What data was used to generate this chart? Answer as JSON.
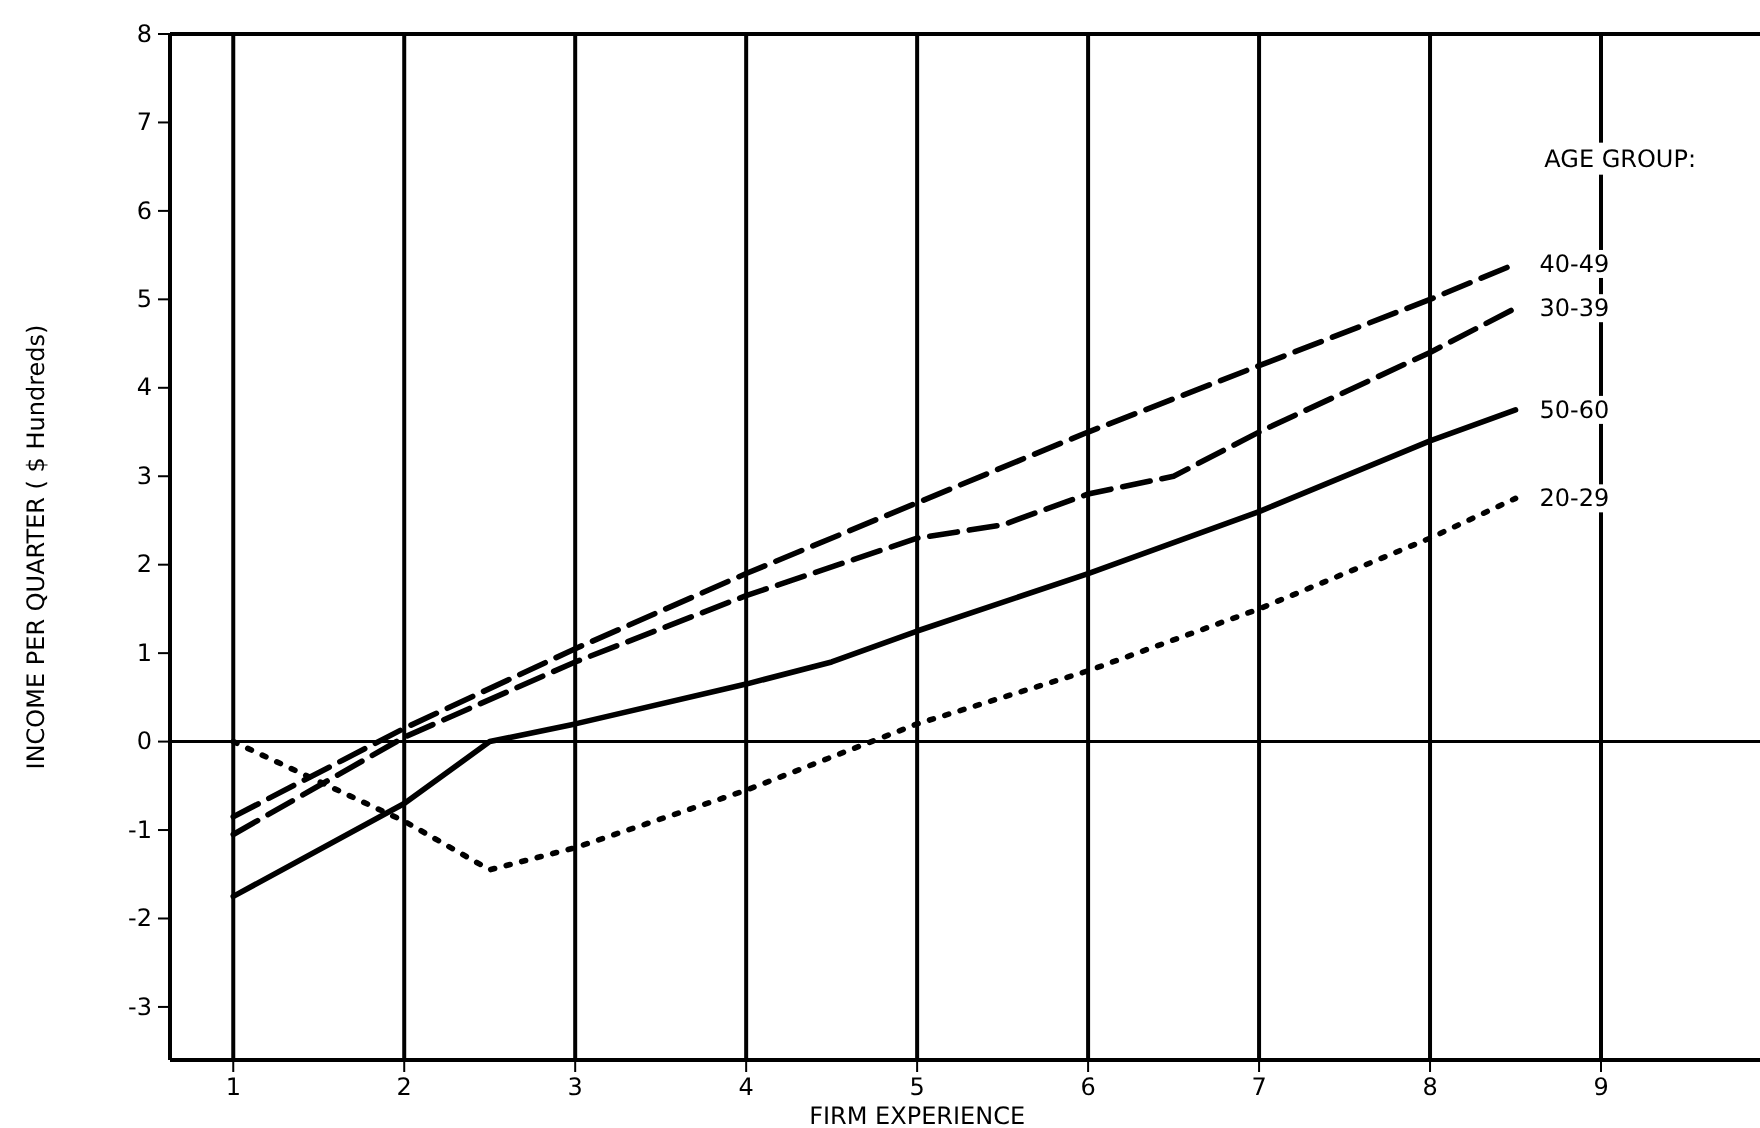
{
  "chart_data": {
    "type": "line",
    "xlabel": "FIRM EXPERIENCE",
    "ylabel": "INCOME PER QUARTER ( $ Hundreds)",
    "legend_title": "AGE GROUP:",
    "legend": "right",
    "grid": "x",
    "xlim": [
      0.63,
      9.93
    ],
    "ylim": [
      -3.6,
      8
    ],
    "xticks": [
      1,
      2,
      3,
      4,
      5,
      6,
      7,
      8,
      9
    ],
    "yticks": [
      -3,
      -2,
      -1,
      0,
      1,
      2,
      3,
      4,
      5,
      6,
      7,
      8
    ],
    "ref_lines": [
      {
        "axis": "y",
        "value": 0,
        "color": "#000000"
      }
    ],
    "series": [
      {
        "name": "40-49",
        "color": "#000000",
        "line_style": "dashed",
        "x": [
          1,
          2,
          3,
          4,
          5,
          6,
          7,
          8,
          8.5
        ],
        "values": [
          -0.85,
          0.15,
          1.05,
          1.9,
          2.7,
          3.5,
          4.25,
          5.0,
          5.4
        ]
      },
      {
        "name": "30-39",
        "color": "#000000",
        "line_style": "dashed",
        "x": [
          1,
          2,
          3,
          4,
          5,
          5.5,
          6,
          6.5,
          7,
          8,
          8.5
        ],
        "values": [
          -1.05,
          0.05,
          0.9,
          1.65,
          2.3,
          2.45,
          2.8,
          3.0,
          3.5,
          4.4,
          4.9
        ]
      },
      {
        "name": "50-60",
        "color": "#000000",
        "line_style": "solid",
        "x": [
          1,
          2,
          2.5,
          3,
          4,
          4.5,
          5,
          6,
          7,
          8,
          8.5
        ],
        "values": [
          -1.75,
          -0.7,
          0.0,
          0.2,
          0.65,
          0.9,
          1.25,
          1.9,
          2.6,
          3.4,
          3.75
        ]
      },
      {
        "name": "20-29",
        "color": "#000000",
        "line_style": "dotted",
        "x": [
          1,
          2,
          2.5,
          3,
          4,
          5,
          6,
          7,
          8,
          8.5
        ],
        "values": [
          0.0,
          -0.9,
          -1.45,
          -1.2,
          -0.55,
          0.2,
          0.8,
          1.5,
          2.3,
          2.75
        ]
      }
    ]
  }
}
